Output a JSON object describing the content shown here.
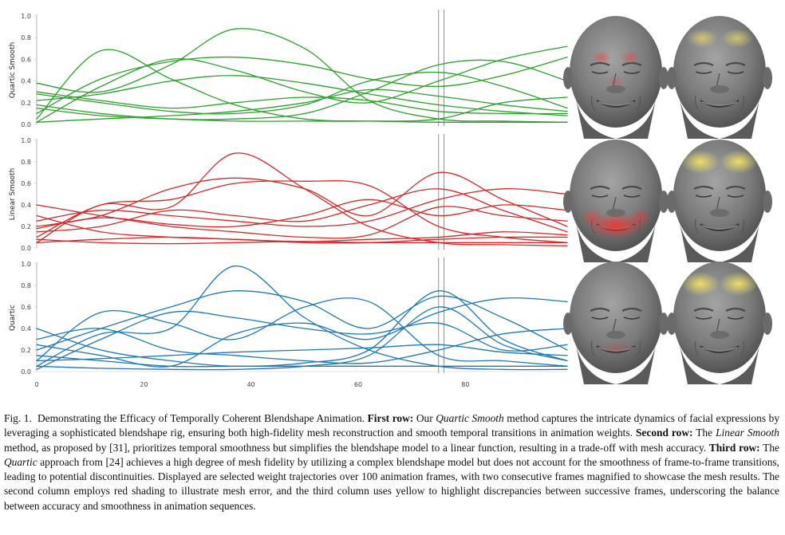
{
  "figure": {
    "rows": [
      {
        "label": "Quartic Smooth",
        "color": "#2ca02c"
      },
      {
        "label": "Linear Smooth",
        "color": "#d62728"
      },
      {
        "label": "Quartic",
        "color": "#1f77b4"
      }
    ],
    "yticks": [
      "0.0",
      "0.2",
      "0.4",
      "0.6",
      "0.8",
      "1.0"
    ],
    "xticks": [
      "0",
      "20",
      "40",
      "60",
      "80"
    ],
    "magnified_frames": [
      75,
      76
    ],
    "face_columns": [
      "mesh error (red shading)",
      "frame-to-frame discrepancy (yellow)"
    ]
  },
  "chart_data": [
    {
      "type": "line",
      "ylabel": "Quartic Smooth",
      "xlim": [
        0,
        99
      ],
      "ylim": [
        0,
        1.0
      ],
      "x": [
        0,
        12,
        25,
        37,
        50,
        62,
        75,
        87,
        99
      ],
      "series": [
        {
          "values": [
            0.05,
            0.68,
            0.42,
            0.18,
            0.05,
            0.03,
            0.02,
            0.02,
            0.02
          ]
        },
        {
          "values": [
            0.38,
            0.3,
            0.55,
            0.88,
            0.7,
            0.22,
            0.05,
            0.03,
            0.02
          ]
        },
        {
          "values": [
            0.02,
            0.35,
            0.6,
            0.5,
            0.3,
            0.2,
            0.4,
            0.6,
            0.72
          ]
        },
        {
          "values": [
            0.28,
            0.2,
            0.12,
            0.1,
            0.18,
            0.4,
            0.48,
            0.35,
            0.15
          ]
        },
        {
          "values": [
            0.1,
            0.42,
            0.58,
            0.62,
            0.55,
            0.42,
            0.35,
            0.45,
            0.62
          ]
        },
        {
          "values": [
            0.18,
            0.1,
            0.05,
            0.05,
            0.1,
            0.3,
            0.55,
            0.58,
            0.4
          ]
        },
        {
          "values": [
            0.3,
            0.22,
            0.15,
            0.2,
            0.25,
            0.22,
            0.12,
            0.1,
            0.1
          ]
        },
        {
          "values": [
            0.02,
            0.05,
            0.08,
            0.12,
            0.2,
            0.32,
            0.26,
            0.18,
            0.12
          ]
        },
        {
          "values": [
            0.15,
            0.08,
            0.05,
            0.03,
            0.03,
            0.03,
            0.05,
            0.2,
            0.25
          ]
        },
        {
          "values": [
            0.22,
            0.28,
            0.4,
            0.45,
            0.38,
            0.28,
            0.18,
            0.12,
            0.08
          ]
        }
      ]
    },
    {
      "type": "line",
      "ylabel": "Linear Smooth",
      "xlim": [
        0,
        99
      ],
      "ylim": [
        0,
        1.0
      ],
      "x": [
        0,
        12,
        25,
        37,
        50,
        62,
        75,
        87,
        99
      ],
      "series": [
        {
          "values": [
            0.05,
            0.4,
            0.38,
            0.88,
            0.55,
            0.2,
            0.05,
            0.03,
            0.02
          ]
        },
        {
          "values": [
            0.2,
            0.3,
            0.55,
            0.65,
            0.55,
            0.3,
            0.7,
            0.45,
            0.2
          ]
        },
        {
          "values": [
            0.1,
            0.4,
            0.45,
            0.6,
            0.62,
            0.58,
            0.2,
            0.1,
            0.05
          ]
        },
        {
          "values": [
            0.25,
            0.35,
            0.3,
            0.25,
            0.2,
            0.25,
            0.45,
            0.55,
            0.5
          ]
        },
        {
          "values": [
            0.4,
            0.3,
            0.2,
            0.15,
            0.1,
            0.12,
            0.38,
            0.3,
            0.25
          ]
        },
        {
          "values": [
            0.15,
            0.2,
            0.35,
            0.3,
            0.25,
            0.4,
            0.55,
            0.35,
            0.15
          ]
        },
        {
          "values": [
            0.05,
            0.08,
            0.1,
            0.08,
            0.06,
            0.08,
            0.1,
            0.15,
            0.12
          ]
        },
        {
          "values": [
            0.3,
            0.15,
            0.1,
            0.08,
            0.05,
            0.05,
            0.08,
            0.1,
            0.1
          ]
        },
        {
          "values": [
            0.18,
            0.28,
            0.22,
            0.2,
            0.3,
            0.45,
            0.3,
            0.4,
            0.35
          ]
        },
        {
          "values": [
            0.08,
            0.05,
            0.04,
            0.05,
            0.06,
            0.05,
            0.05,
            0.05,
            0.05
          ]
        }
      ]
    },
    {
      "type": "line",
      "ylabel": "Quartic",
      "xlim": [
        0,
        99
      ],
      "ylim": [
        0,
        1.0
      ],
      "x": [
        0,
        12,
        25,
        37,
        50,
        62,
        75,
        87,
        99
      ],
      "series": [
        {
          "values": [
            0.05,
            0.35,
            0.4,
            0.98,
            0.5,
            0.2,
            0.05,
            0.02,
            0.02
          ]
        },
        {
          "values": [
            0.2,
            0.4,
            0.6,
            0.75,
            0.65,
            0.4,
            0.7,
            0.5,
            0.2
          ]
        },
        {
          "values": [
            0.1,
            0.55,
            0.45,
            0.3,
            0.6,
            0.65,
            0.15,
            0.1,
            0.05
          ]
        },
        {
          "values": [
            0.25,
            0.15,
            0.05,
            0.35,
            0.45,
            0.3,
            0.55,
            0.68,
            0.65
          ]
        },
        {
          "values": [
            0.4,
            0.2,
            0.1,
            0.05,
            0.08,
            0.2,
            0.75,
            0.3,
            0.1
          ]
        },
        {
          "values": [
            0.02,
            0.3,
            0.55,
            0.5,
            0.4,
            0.35,
            0.45,
            0.2,
            0.25
          ]
        },
        {
          "values": [
            0.15,
            0.1,
            0.05,
            0.05,
            0.05,
            0.05,
            0.05,
            0.05,
            0.05
          ]
        },
        {
          "values": [
            0.3,
            0.4,
            0.2,
            0.15,
            0.1,
            0.08,
            0.2,
            0.35,
            0.4
          ]
        },
        {
          "values": [
            0.05,
            0.03,
            0.02,
            0.02,
            0.05,
            0.15,
            0.6,
            0.25,
            0.1
          ]
        },
        {
          "values": [
            0.1,
            0.12,
            0.15,
            0.18,
            0.2,
            0.22,
            0.25,
            0.18,
            0.15
          ]
        }
      ]
    }
  ],
  "caption": {
    "label": "Fig. 1.",
    "title": "Demonstrating the Efficacy of Temporally Coherent Blendshape Animation.",
    "s1_lead": "First row:",
    "s1_pre": "Our",
    "s1_method": "Quartic Smooth",
    "s1_text": "method captures the intricate dynamics of facial expressions by leveraging a sophisticated blendshape rig, ensuring both high-fidelity mesh reconstruction and smooth temporal transitions in animation weights.",
    "s2_lead": "Second row:",
    "s2_pre": "The",
    "s2_method": "Linear Smooth",
    "s2_text": "method, as proposed by [31], prioritizes temporal smoothness but simplifies the blendshape model to a linear function, resulting in a trade-off with mesh accuracy.",
    "s3_lead": "Third row:",
    "s3_pre": "The",
    "s3_method": "Quartic",
    "s3_text": "approach from [24] achieves a high degree of mesh fidelity by utilizing a complex blendshape model but does not account for the smoothness of frame-to-frame transitions, leading to potential discontinuities. Displayed are selected weight trajectories over 100 animation frames, with two consecutive frames magnified to showcase the mesh results. The second column employs red shading to illustrate mesh error, and the third column uses yellow to highlight discrepancies between successive frames, underscoring the balance between accuracy and smoothness in animation sequences."
  }
}
